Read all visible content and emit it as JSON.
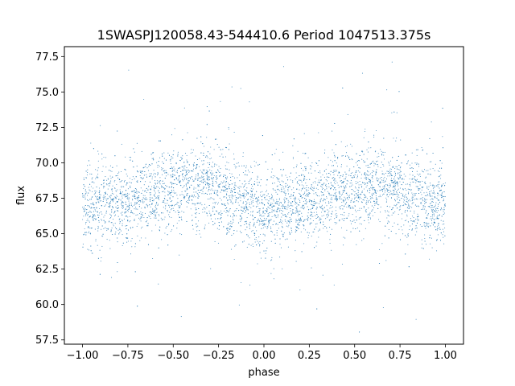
{
  "chart_data": {
    "type": "scatter",
    "title": "1SWASPJ120058.43-544410.6 Period 1047513.375s",
    "xlabel": "phase",
    "ylabel": "flux",
    "xlim": [
      -1.1,
      1.1
    ],
    "ylim": [
      57.2,
      78.2
    ],
    "x_ticks": [
      -1.0,
      -0.75,
      -0.5,
      -0.25,
      0.0,
      0.25,
      0.5,
      0.75,
      1.0
    ],
    "x_tick_labels": [
      "−1.00",
      "−0.75",
      "−0.50",
      "−0.25",
      "0.00",
      "0.25",
      "0.50",
      "0.75",
      "1.00"
    ],
    "y_ticks": [
      57.5,
      60.0,
      62.5,
      65.0,
      67.5,
      70.0,
      72.5,
      75.0,
      77.5
    ],
    "y_tick_labels": [
      "57.5",
      "60.0",
      "62.5",
      "65.0",
      "67.5",
      "70.0",
      "72.5",
      "75.0",
      "77.5"
    ],
    "grid": false,
    "marker_color": "#1f77b4",
    "series": [
      {
        "phase_range": [
          -1.0,
          1.0
        ],
        "profile_phase": [
          -1.0,
          -0.875,
          -0.75,
          -0.625,
          -0.5,
          -0.375,
          -0.25,
          -0.125,
          0.0,
          0.125,
          0.25,
          0.375,
          0.5,
          0.625,
          0.75,
          0.875,
          1.0
        ],
        "profile_median_flux": [
          66.8,
          66.9,
          67.2,
          67.8,
          68.2,
          68.4,
          68.1,
          67.2,
          66.6,
          66.9,
          67.2,
          67.8,
          68.2,
          68.4,
          68.1,
          67.2,
          66.8
        ],
        "typical_scatter": 1.4,
        "flux_min": 58.0,
        "flux_max": 77.5
      }
    ]
  }
}
